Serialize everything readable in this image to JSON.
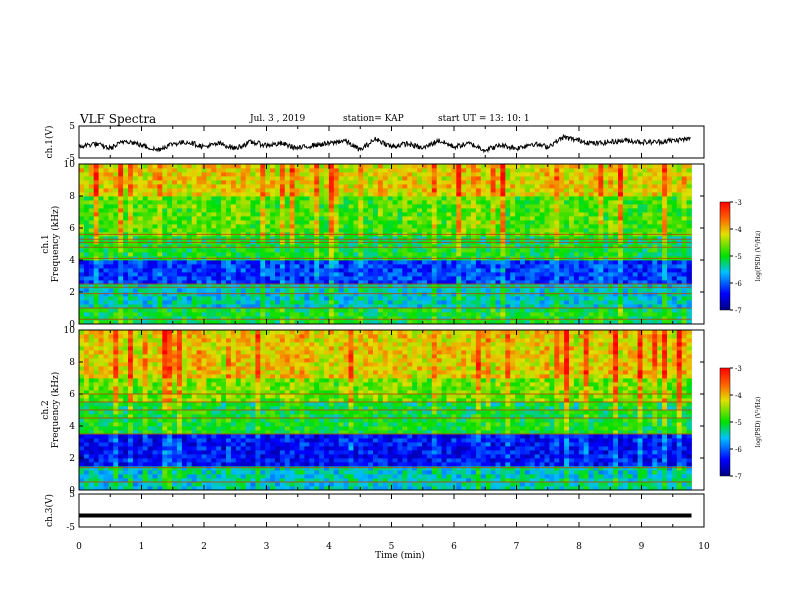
{
  "header": {
    "title": "VLF Spectra",
    "date": "Jul.  3  , 2019",
    "station": "station= KAP",
    "start": "start  UT  =   13: 10: 1"
  },
  "colors": {
    "waveform": "#000000",
    "spectrogram_low": "#0000a0",
    "spectrogram_mid": "#00e000",
    "spectrogram_high": "#e00000"
  },
  "chart_data": [
    {
      "type": "line",
      "panel": "ch1-waveform",
      "ylabel": "ch.1(V)",
      "ylim": [
        -5,
        5
      ],
      "yticks": [
        "5",
        "-5"
      ],
      "xlim": [
        0,
        10
      ],
      "description_series": "noisy voltage trace between about -4 and 3 V",
      "series": [
        {
          "x": [
            0,
            0.25,
            0.5,
            0.75,
            1,
            1.25,
            1.5,
            1.75,
            2,
            2.25,
            2.5,
            2.75,
            3,
            3.25,
            3.5,
            3.75,
            4,
            4.25,
            4.5,
            4.75,
            5,
            5.25,
            5.5,
            5.75,
            6,
            6.25,
            6.5,
            6.75,
            7,
            7.25,
            7.5,
            7.75,
            8,
            8.25,
            8.5,
            8.75,
            9,
            9.25,
            9.5,
            9.8
          ],
          "y": [
            -1.5,
            -0.5,
            -2,
            0.5,
            -1,
            -2.5,
            -0.5,
            0,
            -1.5,
            -0.5,
            -2,
            0,
            -1,
            -0.5,
            -2,
            -1,
            -0.5,
            0.5,
            -2.5,
            1,
            -1.5,
            -0.5,
            -2,
            0.5,
            -1.5,
            -0.5,
            -2.5,
            -1,
            -2,
            -0.5,
            -1.5,
            1.5,
            0.5,
            -0.5,
            0,
            0.5,
            0,
            0,
            0.5,
            1
          ]
        }
      ]
    },
    {
      "type": "heatmap",
      "panel": "ch1-spectrogram",
      "ylabel": "ch.1\nFrequency (kHz)",
      "ylim": [
        0,
        10
      ],
      "yticks": [
        "0",
        "2",
        "4",
        "6",
        "8",
        "10"
      ],
      "xlim": [
        0,
        9.8
      ],
      "colorbar": {
        "label": "log(PSD) (V²/Hz)",
        "range": [
          -7,
          -3
        ],
        "ticks": [
          "-3",
          "-4",
          "-5",
          "-6",
          "-7"
        ]
      },
      "bands": [
        {
          "f": [
            8.0,
            10.0
          ],
          "level": -4.0
        },
        {
          "f": [
            5.5,
            8.0
          ],
          "level": -4.6
        },
        {
          "f": [
            4.0,
            5.5
          ],
          "level": -5.0
        },
        {
          "f": [
            2.5,
            4.0
          ],
          "level": -6.1
        },
        {
          "f": [
            1.0,
            2.5
          ],
          "level": -5.4
        },
        {
          "f": [
            0.0,
            1.0
          ],
          "level": -5.0
        }
      ],
      "lines_khz": [
        0.3,
        1.0,
        1.9,
        2.3,
        2.5,
        4.1,
        4.8,
        5.1,
        5.3,
        5.6
      ]
    },
    {
      "type": "heatmap",
      "panel": "ch2-spectrogram",
      "ylabel": "ch.2\nFrequency (kHz)",
      "ylim": [
        0,
        10
      ],
      "yticks": [
        "0",
        "2",
        "4",
        "6",
        "8",
        "10"
      ],
      "xlim": [
        0,
        9.8
      ],
      "colorbar": {
        "label": "log(PSD) (V²/Hz)",
        "range": [
          -7,
          -3
        ],
        "ticks": [
          "-3",
          "-4",
          "-5",
          "-6",
          "-7"
        ]
      },
      "bands": [
        {
          "f": [
            7.0,
            10.0
          ],
          "level": -4.0
        },
        {
          "f": [
            5.5,
            7.0
          ],
          "level": -4.5
        },
        {
          "f": [
            3.5,
            5.5
          ],
          "level": -5.0
        },
        {
          "f": [
            1.5,
            3.5
          ],
          "level": -6.3
        },
        {
          "f": [
            0.0,
            1.5
          ],
          "level": -5.4
        }
      ],
      "lines_khz": [
        0.5,
        1.4,
        3.5,
        4.5,
        5.0,
        5.5,
        6.0
      ]
    },
    {
      "type": "line",
      "panel": "ch3-waveform",
      "ylabel": "ch.3(V)",
      "ylim": [
        -5,
        5
      ],
      "yticks": [
        "5",
        "-5"
      ],
      "xlim": [
        0,
        10
      ],
      "xlabel": "Time  (min)",
      "xticks": [
        "0",
        "1",
        "2",
        "3",
        "4",
        "5",
        "6",
        "7",
        "8",
        "9",
        "10"
      ],
      "series": [
        {
          "x": [
            0,
            9.8
          ],
          "y": [
            -1.5,
            -1.5
          ]
        }
      ]
    }
  ]
}
